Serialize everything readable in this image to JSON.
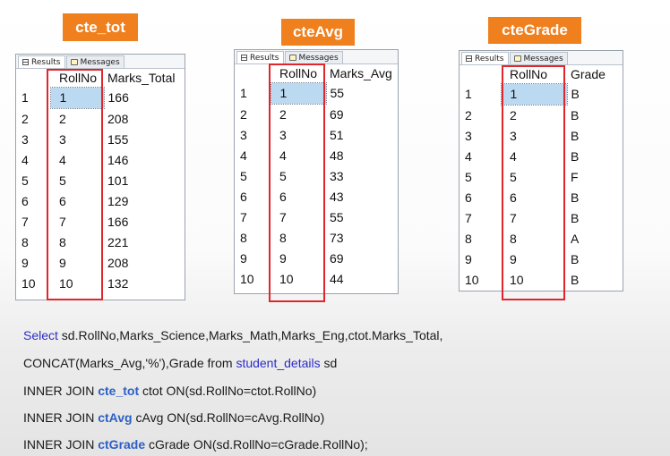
{
  "labels": {
    "cte_tot": "cte_tot",
    "cte_avg": "cteAvg",
    "cte_grade": "cteGrade"
  },
  "tabs": {
    "results": "Results",
    "messages": "Messages"
  },
  "grid1": {
    "headers": [
      "",
      "RollNo",
      "Marks_Total"
    ],
    "rows": [
      [
        "1",
        "1",
        "166"
      ],
      [
        "2",
        "2",
        "208"
      ],
      [
        "3",
        "3",
        "155"
      ],
      [
        "4",
        "4",
        "146"
      ],
      [
        "5",
        "5",
        "101"
      ],
      [
        "6",
        "6",
        "129"
      ],
      [
        "7",
        "7",
        "166"
      ],
      [
        "8",
        "8",
        "221"
      ],
      [
        "9",
        "9",
        "208"
      ],
      [
        "10",
        "10",
        "132"
      ]
    ]
  },
  "grid2": {
    "headers": [
      "",
      "RollNo",
      "Marks_Avg"
    ],
    "rows": [
      [
        "1",
        "1",
        "55"
      ],
      [
        "2",
        "2",
        "69"
      ],
      [
        "3",
        "3",
        "51"
      ],
      [
        "4",
        "4",
        "48"
      ],
      [
        "5",
        "5",
        "33"
      ],
      [
        "6",
        "6",
        "43"
      ],
      [
        "7",
        "7",
        "55"
      ],
      [
        "8",
        "8",
        "73"
      ],
      [
        "9",
        "9",
        "69"
      ],
      [
        "10",
        "10",
        "44"
      ]
    ]
  },
  "grid3": {
    "headers": [
      "",
      "RollNo",
      "Grade"
    ],
    "rows": [
      [
        "1",
        "1",
        "B"
      ],
      [
        "2",
        "2",
        "B"
      ],
      [
        "3",
        "3",
        "B"
      ],
      [
        "4",
        "4",
        "B"
      ],
      [
        "5",
        "5",
        "F"
      ],
      [
        "6",
        "6",
        "B"
      ],
      [
        "7",
        "7",
        "B"
      ],
      [
        "8",
        "8",
        "A"
      ],
      [
        "9",
        "9",
        "B"
      ],
      [
        "10",
        "10",
        "B"
      ]
    ]
  },
  "sql": {
    "line1_kw": "Select",
    "line1_rest": " sd.RollNo,Marks_Science,Marks_Math,Marks_Eng,ctot.Marks_Total,",
    "line2_pre": "CONCAT(Marks_Avg,'%'),Grade from ",
    "line2_table": "student_details",
    "line2_post": " sd",
    "line3_pre": "INNER JOIN ",
    "line3_cte": "cte_tot",
    "line3_post": " ctot ON(sd.RollNo=ctot.RollNo)",
    "line4_pre": "INNER JOIN ",
    "line4_cte": "ctAvg",
    "line4_post": " cAvg ON(sd.RollNo=cAvg.RollNo)",
    "line5_pre": "INNER JOIN ",
    "line5_cte": "ctGrade",
    "line5_post": " cGrade ON(sd.RollNo=cGrade.RollNo);"
  },
  "colors": {
    "label_bg": "#f07f1e",
    "highlight": "#e0262a",
    "keyword": "#2c2cc8",
    "selection": "#bcd9f2"
  }
}
